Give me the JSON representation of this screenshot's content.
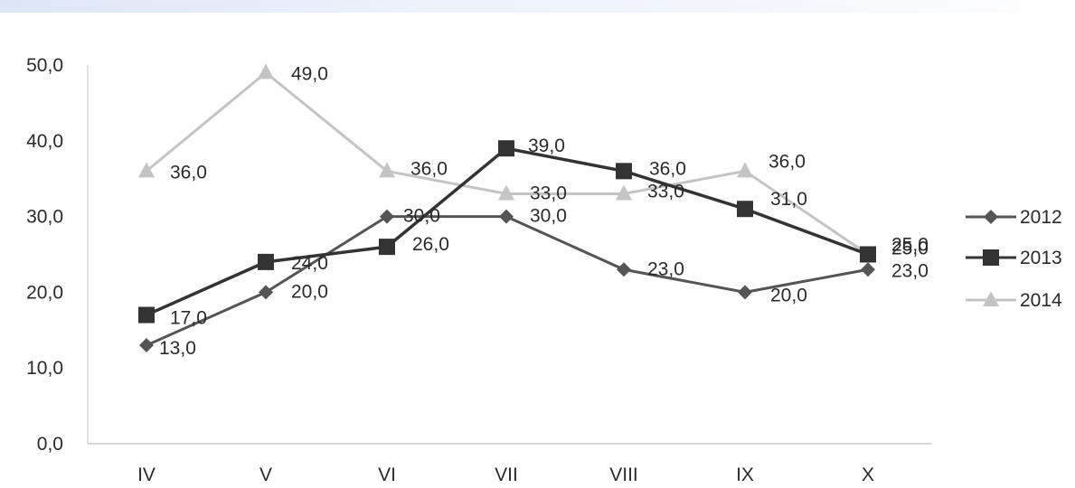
{
  "chart_data": {
    "type": "line",
    "categories": [
      "IV",
      "V",
      "VI",
      "VII",
      "VIII",
      "IX",
      "X"
    ],
    "ylim": [
      0,
      50
    ],
    "y_ticks": [
      "0,0",
      "10,0",
      "20,0",
      "30,0",
      "40,0",
      "50,0"
    ],
    "y_tick_values": [
      0,
      10,
      20,
      30,
      40,
      50
    ],
    "grid": false,
    "legend_position": "right",
    "series": [
      {
        "name": "2012",
        "values": [
          13,
          20,
          30,
          30,
          23,
          20,
          23
        ],
        "labels": [
          "13,0",
          "20,0",
          "30,0",
          "30,0",
          "23,0",
          "20,0",
          "23,0"
        ],
        "color": "#555555",
        "marker": "diamond"
      },
      {
        "name": "2013",
        "values": [
          17,
          24,
          26,
          39,
          36,
          31,
          25
        ],
        "labels": [
          "17,0",
          "24,0",
          "26,0",
          "39,0",
          "36,0",
          "31,0",
          "25,0"
        ],
        "color": "#333333",
        "marker": "square"
      },
      {
        "name": "2014",
        "values": [
          36,
          49,
          36,
          33,
          33,
          36,
          25
        ],
        "labels": [
          "36,0",
          "49,0",
          "36,0",
          "33,0",
          "33,0",
          "36,0",
          "25,0"
        ],
        "color": "#c4c4c4",
        "marker": "triangle"
      }
    ]
  }
}
